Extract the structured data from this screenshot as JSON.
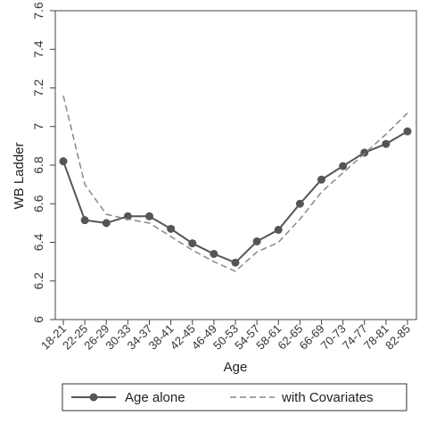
{
  "chart_data": {
    "type": "line",
    "xlabel": "Age",
    "ylabel": "WB Ladder",
    "categories": [
      "18-21",
      "22-25",
      "26-29",
      "30-33",
      "34-37",
      "38-41",
      "42-45",
      "46-49",
      "50-53",
      "54-57",
      "58-61",
      "62-65",
      "66-69",
      "70-73",
      "74-77",
      "78-81",
      "82-85"
    ],
    "ylim": [
      6,
      7.6
    ],
    "yticks": [
      "6",
      "6.2",
      "6.4",
      "6.6",
      "6.8",
      "7",
      "7.2",
      "7.4",
      "7.6"
    ],
    "grid": false,
    "legend_position": "bottom",
    "series": [
      {
        "name": "Age alone",
        "style": "solid-markers",
        "color": "#555555",
        "values": [
          6.82,
          6.515,
          6.5,
          6.535,
          6.535,
          6.47,
          6.395,
          6.34,
          6.295,
          6.405,
          6.465,
          6.6,
          6.725,
          6.795,
          6.865,
          6.91,
          6.975
        ]
      },
      {
        "name": "with Covariates",
        "style": "dashed",
        "color": "#888888",
        "values": [
          7.16,
          6.7,
          6.545,
          6.52,
          6.5,
          6.43,
          6.36,
          6.3,
          6.25,
          6.35,
          6.4,
          6.52,
          6.66,
          6.76,
          6.86,
          6.96,
          7.07
        ]
      }
    ]
  }
}
